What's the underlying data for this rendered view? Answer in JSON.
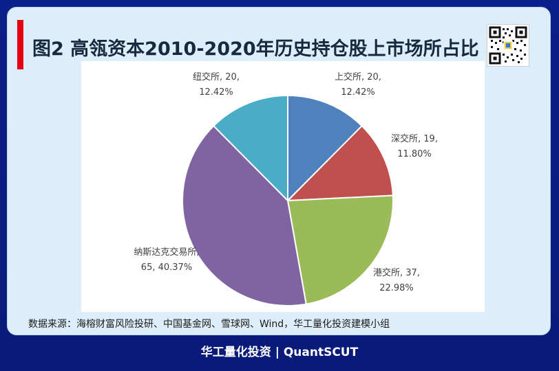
{
  "title": "图2 高瓴资本2010-2020年历史持仓股上市场所占比",
  "source": "数据来源：海榕财富风险投研、中国基金网、雪球网、Wind，华工量化投资建模小组",
  "footer": "华工量化投资 | QuantSCUT",
  "qr_icon": "qr-code-icon",
  "chart_data": {
    "type": "pie",
    "title": "",
    "start_angle_deg": 0,
    "direction": "clockwise",
    "slices": [
      {
        "label": "上交所",
        "value": 20,
        "percent": "12.42%",
        "color": "#4f81bd",
        "text_line1": "上交所, 20,",
        "text_line2": "12.42%"
      },
      {
        "label": "深交所",
        "value": 19,
        "percent": "11.80%",
        "color": "#c0504d",
        "text_line1": "深交所, 19,",
        "text_line2": "11.80%"
      },
      {
        "label": "港交所",
        "value": 37,
        "percent": "22.98%",
        "color": "#9bbb59",
        "text_line1": "港交所, 37,",
        "text_line2": "22.98%"
      },
      {
        "label": "纳斯达克交易所",
        "value": 65,
        "percent": "40.37%",
        "color": "#8064a2",
        "text_line1": "纳斯达克交易所,",
        "text_line2": "65, 40.37%"
      },
      {
        "label": "纽交所",
        "value": 20,
        "percent": "12.42%",
        "color": "#4bacc6",
        "text_line1": "纽交所, 20,",
        "text_line2": "12.42%"
      }
    ]
  }
}
